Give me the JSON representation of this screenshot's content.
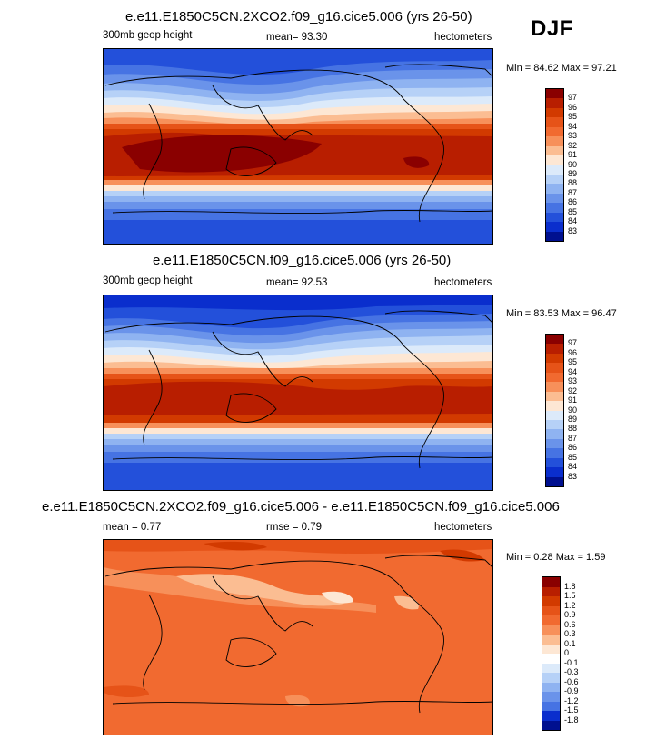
{
  "season": "DJF",
  "panels": [
    {
      "title": "e.e11.E1850C5CN.2XCO2.f09_g16.cice5.006 (yrs 26-50)",
      "left_label": "300mb geop height",
      "center_label": "mean=  93.30",
      "units": "hectometers",
      "minmax": "Min =  84.62 Max =  97.21",
      "colorbar_labels": [
        "97",
        "96",
        "95",
        "94",
        "93",
        "92",
        "91",
        "90",
        "89",
        "88",
        "87",
        "86",
        "85",
        "84",
        "83"
      ],
      "colorbar_colors": [
        "#8a0000",
        "#b81e00",
        "#d23a00",
        "#e65318",
        "#f16a30",
        "#f7905a",
        "#fbbd92",
        "#fde7d4",
        "#dceafa",
        "#b6d1f7",
        "#8fb3f1",
        "#6a93ea",
        "#4673e3",
        "#2350da",
        "#0a2ecd",
        "#00108f"
      ]
    },
    {
      "title": "e.e11.E1850C5CN.f09_g16.cice5.006 (yrs 26-50)",
      "left_label": "300mb geop height",
      "center_label": "mean=  92.53",
      "units": "hectometers",
      "minmax": "Min =  83.53 Max =  96.47",
      "colorbar_labels": [
        "97",
        "96",
        "95",
        "94",
        "93",
        "92",
        "91",
        "90",
        "89",
        "88",
        "87",
        "86",
        "85",
        "84",
        "83"
      ],
      "colorbar_colors": [
        "#8a0000",
        "#b81e00",
        "#d23a00",
        "#e65318",
        "#f16a30",
        "#f7905a",
        "#fbbd92",
        "#fde7d4",
        "#dceafa",
        "#b6d1f7",
        "#8fb3f1",
        "#6a93ea",
        "#4673e3",
        "#2350da",
        "#0a2ecd",
        "#00108f"
      ]
    },
    {
      "title": "e.e11.E1850C5CN.2XCO2.f09_g16.cice5.006 - e.e11.E1850C5CN.f09_g16.cice5.006",
      "left_label": "mean =   0.77",
      "center_label": "rmse =   0.79",
      "units": "hectometers",
      "minmax": "Min =   0.28 Max =   1.59",
      "colorbar_labels": [
        "1.8",
        "1.5",
        "1.2",
        "0.9",
        "0.6",
        "0.3",
        "0.1",
        "0",
        "-0.1",
        "-0.3",
        "-0.6",
        "-0.9",
        "-1.2",
        "-1.5",
        "-1.8"
      ],
      "colorbar_colors": [
        "#8a0000",
        "#b81e00",
        "#d23a00",
        "#e65318",
        "#f16a30",
        "#f7905a",
        "#fbbd92",
        "#fde7d4",
        "#ffffff",
        "#dceafa",
        "#b6d1f7",
        "#8fb3f1",
        "#6a93ea",
        "#4673e3",
        "#0a2ecd",
        "#00108f"
      ]
    }
  ]
}
